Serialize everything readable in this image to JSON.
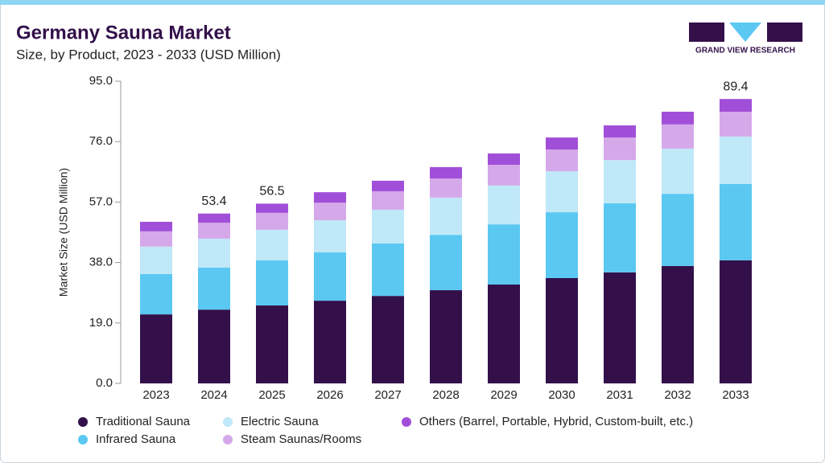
{
  "chart_data": {
    "type": "stacked_bar",
    "title": "Germany Sauna Market",
    "subtitle": "Size, by Product, 2023 - 2033 (USD Million)",
    "y_label": "Market Size (USD Million)",
    "categories": [
      "2023",
      "2024",
      "2025",
      "2026",
      "2027",
      "2028",
      "2029",
      "2030",
      "2031",
      "2032",
      "2033"
    ],
    "series": [
      {
        "name": "Traditional Sauna",
        "color": "#33104a",
        "values": [
          21.7,
          23.2,
          24.5,
          26.0,
          27.5,
          29.3,
          31.1,
          33.1,
          34.9,
          36.9,
          38.7
        ]
      },
      {
        "name": "Infrared Sauna",
        "color": "#5bc8f2",
        "values": [
          12.7,
          13.2,
          14.2,
          15.2,
          16.5,
          17.4,
          18.9,
          20.7,
          21.7,
          22.7,
          24.0
        ]
      },
      {
        "name": "Electric Sauna",
        "color": "#bfe8f8",
        "values": [
          8.6,
          9.1,
          9.6,
          10.1,
          10.6,
          11.7,
          12.2,
          12.9,
          13.6,
          14.2,
          14.9
        ]
      },
      {
        "name": "Steam Saunas/Rooms",
        "color": "#d5a8ea",
        "values": [
          4.8,
          5.0,
          5.3,
          5.5,
          5.8,
          6.0,
          6.5,
          6.8,
          7.1,
          7.6,
          7.8
        ]
      },
      {
        "name": "Others (Barrel, Portable, Hybrid, Custom-built, etc.)",
        "color": "#a14fd8",
        "values": [
          3.0,
          2.9,
          2.9,
          3.3,
          3.3,
          3.6,
          3.6,
          3.8,
          3.8,
          4.0,
          4.0
        ]
      }
    ],
    "annotations": [
      {
        "category": "2024",
        "value": 53.4
      },
      {
        "category": "2025",
        "value": 56.5
      },
      {
        "category": "2033",
        "value": 89.4
      }
    ],
    "ylim": [
      0,
      95
    ],
    "yticks": [
      {
        "value": 0,
        "label": "0.0"
      },
      {
        "value": 19,
        "label": "19.0"
      },
      {
        "value": 38,
        "label": "38.0"
      },
      {
        "value": 57,
        "label": "57.0"
      },
      {
        "value": 76,
        "label": "76.0"
      },
      {
        "value": 95,
        "label": "95.0"
      }
    ],
    "grid": false
  },
  "logo": "GRAND VIEW RESEARCH"
}
